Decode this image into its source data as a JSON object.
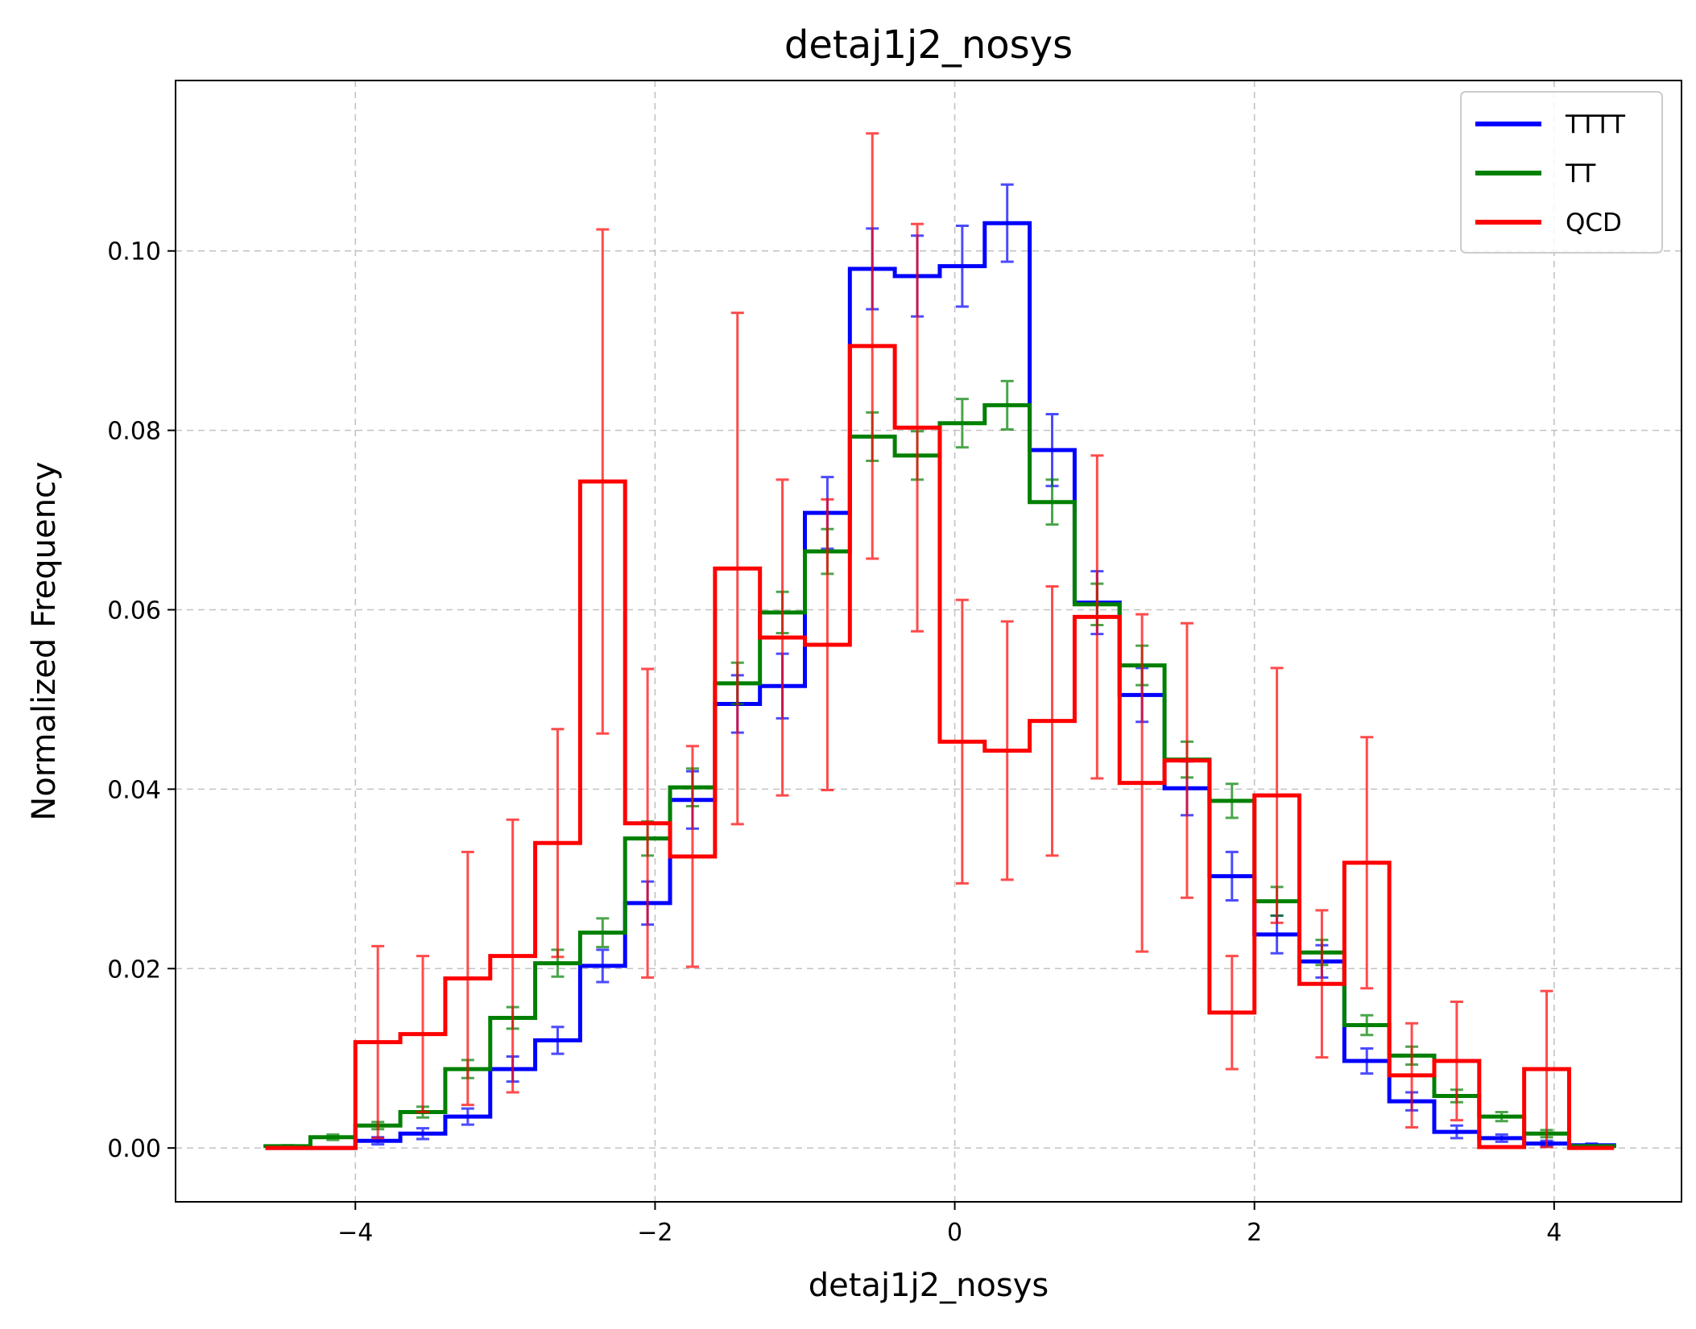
{
  "chart_data": {
    "type": "histogram",
    "title": "detaj1j2_nosys",
    "xlabel": "detaj1j2_nosys",
    "ylabel": "Normalized Frequency",
    "xlim": [
      -5.2,
      4.85
    ],
    "ylim": [
      -0.006,
      0.119
    ],
    "xticks": [
      -4,
      -2,
      0,
      2,
      4
    ],
    "xtick_labels": [
      "−4",
      "−2",
      "0",
      "2",
      "4"
    ],
    "yticks": [
      0.0,
      0.02,
      0.04,
      0.06,
      0.08,
      0.1
    ],
    "ytick_labels": [
      "0.00",
      "0.02",
      "0.04",
      "0.06",
      "0.08",
      "0.10"
    ],
    "grid": true,
    "legend_position": "top-right",
    "bin_edges": [
      -4.6,
      -4.3,
      -4.0,
      -3.7,
      -3.4,
      -3.1,
      -2.8,
      -2.5,
      -2.2,
      -1.9,
      -1.6,
      -1.3,
      -1.0,
      -0.7,
      -0.4,
      -0.1,
      0.2,
      0.5,
      0.8,
      1.1,
      1.4,
      1.7,
      2.0,
      2.3,
      2.6,
      2.9,
      3.2,
      3.5,
      3.8,
      4.1,
      4.4
    ],
    "series": [
      {
        "name": "TTTT",
        "color": "#0000ff",
        "values": [
          0.0,
          0.0,
          0.0008,
          0.0016,
          0.0035,
          0.0088,
          0.012,
          0.0203,
          0.0273,
          0.0388,
          0.0495,
          0.0515,
          0.0708,
          0.098,
          0.0972,
          0.0983,
          0.1031,
          0.0778,
          0.0608,
          0.0505,
          0.0401,
          0.0303,
          0.0238,
          0.0208,
          0.0097,
          0.0052,
          0.0018,
          0.0011,
          0.0005,
          0.0003
        ],
        "errors": [
          0,
          0,
          0.0004,
          0.0006,
          0.0009,
          0.0014,
          0.0015,
          0.0018,
          0.0024,
          0.0032,
          0.0032,
          0.0036,
          0.004,
          0.0045,
          0.0045,
          0.0045,
          0.0043,
          0.004,
          0.0035,
          0.003,
          0.003,
          0.0027,
          0.0021,
          0.0018,
          0.0014,
          0.001,
          0.0007,
          0.0004,
          0.0003,
          0.0002
        ]
      },
      {
        "name": "TT",
        "color": "#008000",
        "values": [
          0.0002,
          0.0012,
          0.0025,
          0.004,
          0.0088,
          0.0145,
          0.0206,
          0.024,
          0.0345,
          0.0402,
          0.0518,
          0.0597,
          0.0665,
          0.0793,
          0.0772,
          0.0808,
          0.0828,
          0.072,
          0.0606,
          0.0538,
          0.0433,
          0.0387,
          0.0275,
          0.0218,
          0.0137,
          0.0103,
          0.0058,
          0.0035,
          0.0016,
          0.0002
        ],
        "errors": [
          0.0001,
          0.0003,
          0.0004,
          0.0006,
          0.001,
          0.0012,
          0.0015,
          0.0016,
          0.0019,
          0.0021,
          0.0023,
          0.0023,
          0.0025,
          0.0027,
          0.0027,
          0.0027,
          0.0027,
          0.0025,
          0.0023,
          0.0022,
          0.002,
          0.0019,
          0.0016,
          0.0014,
          0.0011,
          0.001,
          0.0007,
          0.0005,
          0.0004,
          0.0001
        ]
      },
      {
        "name": "QCD",
        "color": "#ff0000",
        "values": [
          0.0,
          0.0,
          0.0118,
          0.0127,
          0.0189,
          0.0214,
          0.034,
          0.0743,
          0.0362,
          0.0325,
          0.0646,
          0.0569,
          0.0561,
          0.0894,
          0.0803,
          0.0453,
          0.0443,
          0.0476,
          0.0592,
          0.0407,
          0.0432,
          0.0151,
          0.0393,
          0.0183,
          0.0318,
          0.0081,
          0.0097,
          0.0001,
          0.0088,
          0.0
        ],
        "errors": [
          0,
          0,
          0.0107,
          0.0087,
          0.0141,
          0.0152,
          0.0127,
          0.0281,
          0.0172,
          0.0123,
          0.0285,
          0.0176,
          0.0162,
          0.0237,
          0.0227,
          0.0158,
          0.0144,
          0.015,
          0.018,
          0.0188,
          0.0153,
          0.0063,
          0.0142,
          0.0082,
          0.014,
          0.0058,
          0.0066,
          0.0,
          0.0087,
          0
        ]
      }
    ]
  }
}
